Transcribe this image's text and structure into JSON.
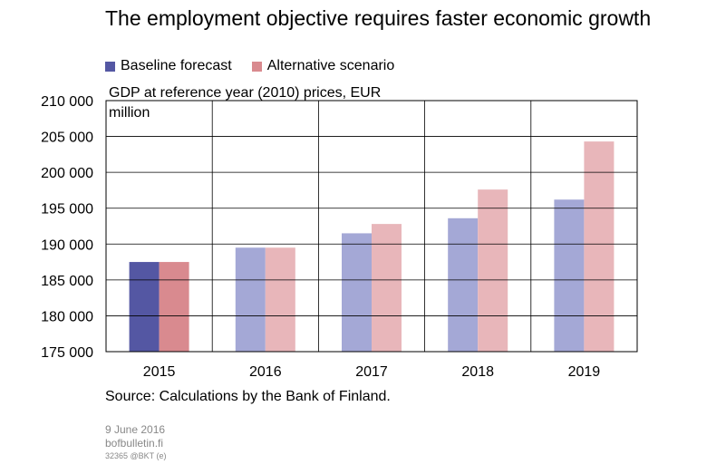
{
  "title": "The employment objective requires faster economic growth",
  "legend": {
    "baseline": "Baseline forecast",
    "alternative": "Alternative scenario"
  },
  "colors": {
    "baseline_2015": "#5457a3",
    "alternative_2015": "#d98a8f",
    "baseline": "#a4a8d6",
    "alternative": "#e8b6ba"
  },
  "chart_data": {
    "type": "bar",
    "categories": [
      "2015",
      "2016",
      "2017",
      "2018",
      "2019"
    ],
    "series": [
      {
        "name": "Baseline forecast",
        "values": [
          187500,
          189500,
          191500,
          193600,
          196200
        ]
      },
      {
        "name": "Alternative scenario",
        "values": [
          187500,
          189500,
          192800,
          197600,
          204300
        ]
      }
    ],
    "ylabel": "GDP at reference year (2010) prices, EUR million",
    "ylim": [
      175000,
      210000
    ],
    "yticks": [
      "175 000",
      "180 000",
      "185 000",
      "190 000",
      "195 000",
      "200 000",
      "205 000",
      "210 000"
    ],
    "grid": true
  },
  "source": "Source: Calculations by the Bank of Finland.",
  "footer": {
    "date": "9 June 2016",
    "site": "bofbulletin.fi",
    "code": "32365 @BKT (e)"
  }
}
